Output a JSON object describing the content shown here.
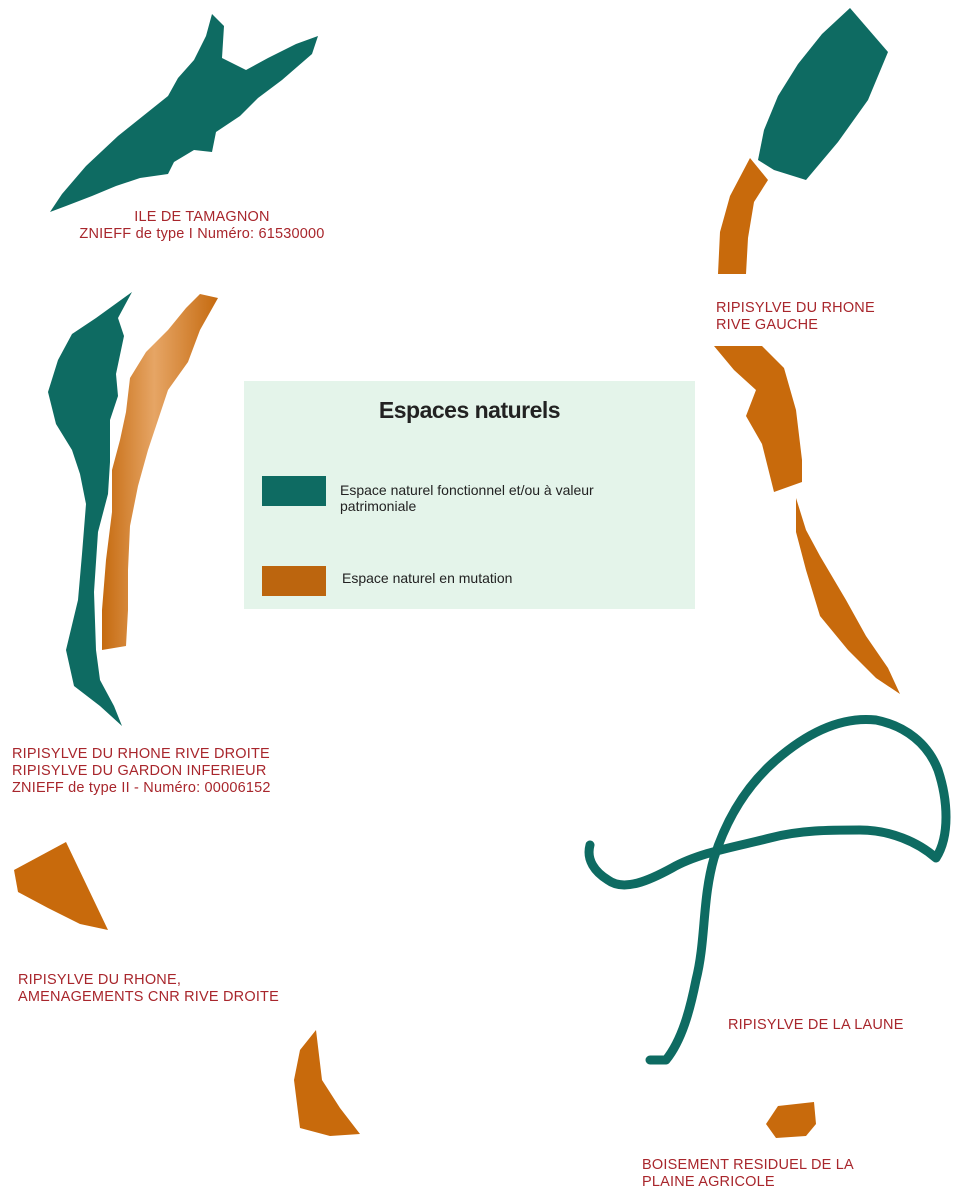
{
  "colors": {
    "functional": "#0e6b62",
    "mutation": "#c86a0c",
    "label": "#a8262c",
    "legend_bg": "#e4f4ea"
  },
  "legend": {
    "title": "Espaces naturels",
    "items": [
      {
        "label_line1": "Espace naturel fonctionnel et/ou à valeur",
        "label_line2": "patrimoniale",
        "color": "#0e6b62"
      },
      {
        "label_line1": "Espace naturel en mutation",
        "label_line2": "",
        "color": "#c0660e"
      }
    ]
  },
  "labels": {
    "tamagnon": [
      "ILE DE TAMAGNON",
      "ZNIEFF de type I Numéro: 61530000"
    ],
    "rive_gauche": [
      "RIPISYLVE DU RHONE",
      "RIVE GAUCHE"
    ],
    "rive_droite": [
      "RIPISYLVE DU RHONE RIVE DROITE",
      "RIPISYLVE DU GARDON INFERIEUR",
      "ZNIEFF de type II - Numéro: 00006152"
    ],
    "cnr": [
      "RIPISYLVE DU RHONE,",
      "AMENAGEMENTS CNR RIVE DROITE"
    ],
    "laune": [
      "RIPISYLVE DE LA LAUNE"
    ],
    "boisement": [
      "BOISEMENT RESIDUEL DE LA",
      "PLAINE AGRICOLE"
    ]
  }
}
